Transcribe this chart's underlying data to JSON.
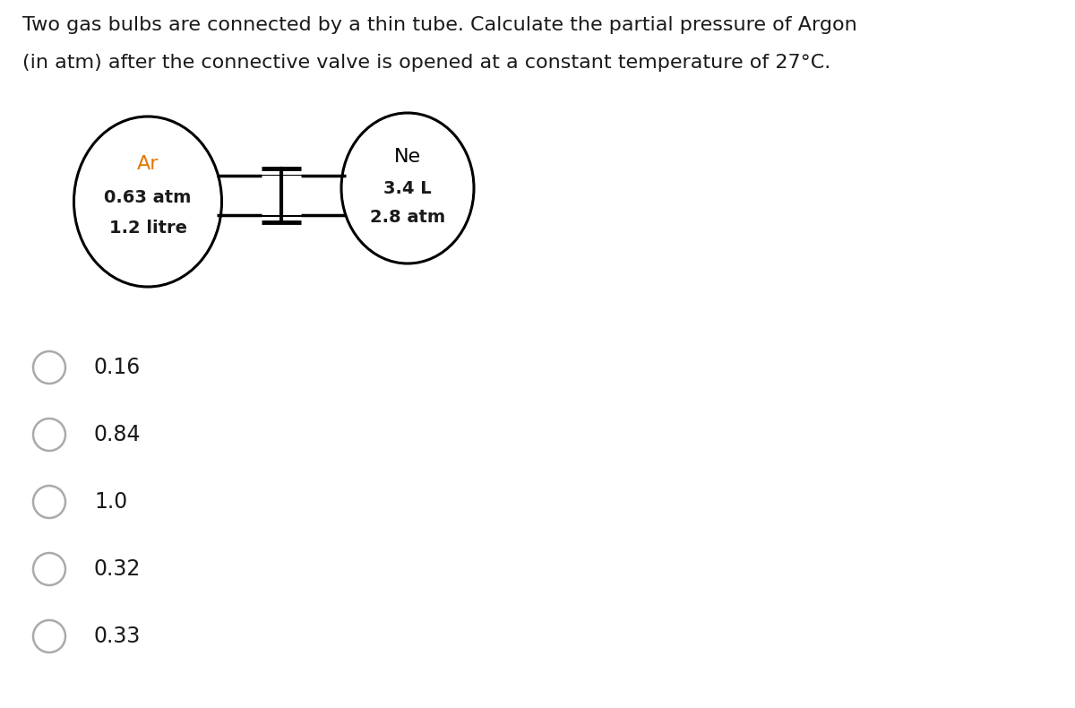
{
  "title_line1": "Two gas bulbs are connected by a thin tube. Calculate the partial pressure of Argon",
  "title_line2": "(in atm) after the connective valve is opened at a constant temperature of 27°C.",
  "left_bulb_label": "Ar",
  "left_bulb_line2": "0.63 atm",
  "left_bulb_line3": "1.2 litre",
  "right_bulb_label": "Ne",
  "right_bulb_line2": "3.4 L",
  "right_bulb_line3": "2.8 atm",
  "ar_color": "#e07800",
  "ne_color": "#000000",
  "options": [
    "0.16",
    "0.84",
    "1.0",
    "0.32",
    "0.33"
  ],
  "background_color": "#ffffff",
  "text_color": "#1a1a1a",
  "line_color": "#000000",
  "radio_color": "#aaaaaa",
  "title_fontsize": 16,
  "bulb_label_fontsize": 14,
  "bulb_text_fontsize": 13,
  "option_fontsize": 17
}
